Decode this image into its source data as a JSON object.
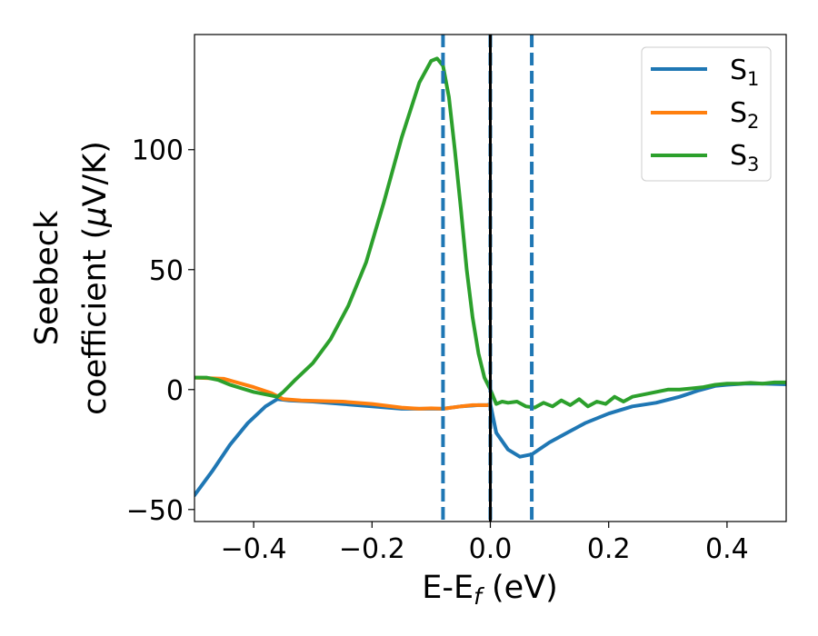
{
  "chart_data": {
    "type": "line",
    "xlabel": "E-E",
    "xlabel_sub": "f",
    "xlabel_unit": " (eV)",
    "ylabel_line1": "Seebeck",
    "ylabel_line2": "coefficient  (",
    "ylabel_mu": "μ",
    "ylabel_unit_end": "V/K)",
    "xlim": [
      -0.5,
      0.5
    ],
    "ylim": [
      -55,
      148
    ],
    "xticks": [
      -0.4,
      -0.2,
      0.0,
      0.2,
      0.4
    ],
    "xtick_labels": [
      "−0.4",
      "−0.2",
      "0.0",
      "0.2",
      "0.4"
    ],
    "yticks": [
      -50,
      0,
      50,
      100
    ],
    "ytick_labels": [
      "−50",
      "0",
      "50",
      "100"
    ],
    "grid": false,
    "legend_position": "top-right",
    "vlines": [
      {
        "x": -0.08,
        "style": "dashed",
        "color": "#1f77b4"
      },
      {
        "x": 0.07,
        "style": "dashed",
        "color": "#1f77b4"
      },
      {
        "x": 0.0,
        "style": "dashed",
        "color": "#1f77b4"
      },
      {
        "x": 0.0,
        "style": "solid",
        "color": "#000000"
      }
    ],
    "series": [
      {
        "name": "S",
        "name_sub": "1",
        "color": "#1f77b4",
        "x": [
          -0.5,
          -0.47,
          -0.44,
          -0.41,
          -0.38,
          -0.36,
          -0.34,
          -0.3,
          -0.25,
          -0.2,
          -0.15,
          -0.1,
          -0.08,
          -0.05,
          -0.02,
          -0.005,
          0.0,
          0.01,
          0.03,
          0.05,
          0.07,
          0.1,
          0.13,
          0.16,
          0.2,
          0.24,
          0.28,
          0.32,
          0.35,
          0.38,
          0.4,
          0.43,
          0.46,
          0.5
        ],
        "y": [
          -44,
          -34,
          -23,
          -14,
          -7,
          -4,
          -4.5,
          -5,
          -6,
          -7,
          -8,
          -8,
          -8,
          -7,
          -6.5,
          -6.5,
          -6,
          -18,
          -25,
          -28,
          -27,
          -22,
          -18,
          -14,
          -10,
          -7,
          -5.5,
          -3,
          -0.5,
          1.5,
          2,
          2.5,
          2.5,
          2.2
        ]
      },
      {
        "name": "S",
        "name_sub": "2",
        "color": "#ff7f0e",
        "x": [
          -0.5,
          -0.45,
          -0.4,
          -0.37,
          -0.35,
          -0.32,
          -0.28,
          -0.25,
          -0.2,
          -0.15,
          -0.12,
          -0.1,
          -0.08,
          -0.05,
          -0.03,
          -0.01,
          0.0
        ],
        "y": [
          5,
          4.5,
          1,
          -1.5,
          -4,
          -4.5,
          -4.8,
          -5,
          -6,
          -7.5,
          -8,
          -7.8,
          -8,
          -7,
          -6.5,
          -6.5,
          -6.5
        ]
      },
      {
        "name": "S",
        "name_sub": "3",
        "color": "#2ca02c",
        "x": [
          -0.5,
          -0.48,
          -0.46,
          -0.44,
          -0.42,
          -0.4,
          -0.38,
          -0.36,
          -0.35,
          -0.33,
          -0.3,
          -0.27,
          -0.24,
          -0.21,
          -0.18,
          -0.15,
          -0.12,
          -0.1,
          -0.09,
          -0.08,
          -0.07,
          -0.06,
          -0.05,
          -0.04,
          -0.03,
          -0.02,
          -0.01,
          0.0,
          0.01,
          0.02,
          0.03,
          0.045,
          0.06,
          0.075,
          0.09,
          0.105,
          0.12,
          0.135,
          0.15,
          0.165,
          0.18,
          0.195,
          0.21,
          0.225,
          0.24,
          0.26,
          0.28,
          0.3,
          0.32,
          0.34,
          0.36,
          0.38,
          0.4,
          0.42,
          0.44,
          0.46,
          0.48,
          0.5
        ],
        "y": [
          5,
          5,
          4,
          2,
          0.5,
          -1,
          -2,
          -3,
          -1,
          4,
          11,
          21,
          35,
          53,
          78,
          105,
          128,
          137,
          138,
          135,
          122,
          100,
          76,
          50,
          30,
          15,
          5,
          0,
          -6,
          -5,
          -5.5,
          -5,
          -7,
          -7.5,
          -5.5,
          -7,
          -4.5,
          -6.5,
          -4,
          -7,
          -5,
          -6,
          -3,
          -5,
          -3,
          -2,
          -1,
          0,
          0,
          0.5,
          1,
          2,
          2.5,
          2.5,
          2.8,
          2.5,
          3,
          3
        ]
      }
    ]
  }
}
